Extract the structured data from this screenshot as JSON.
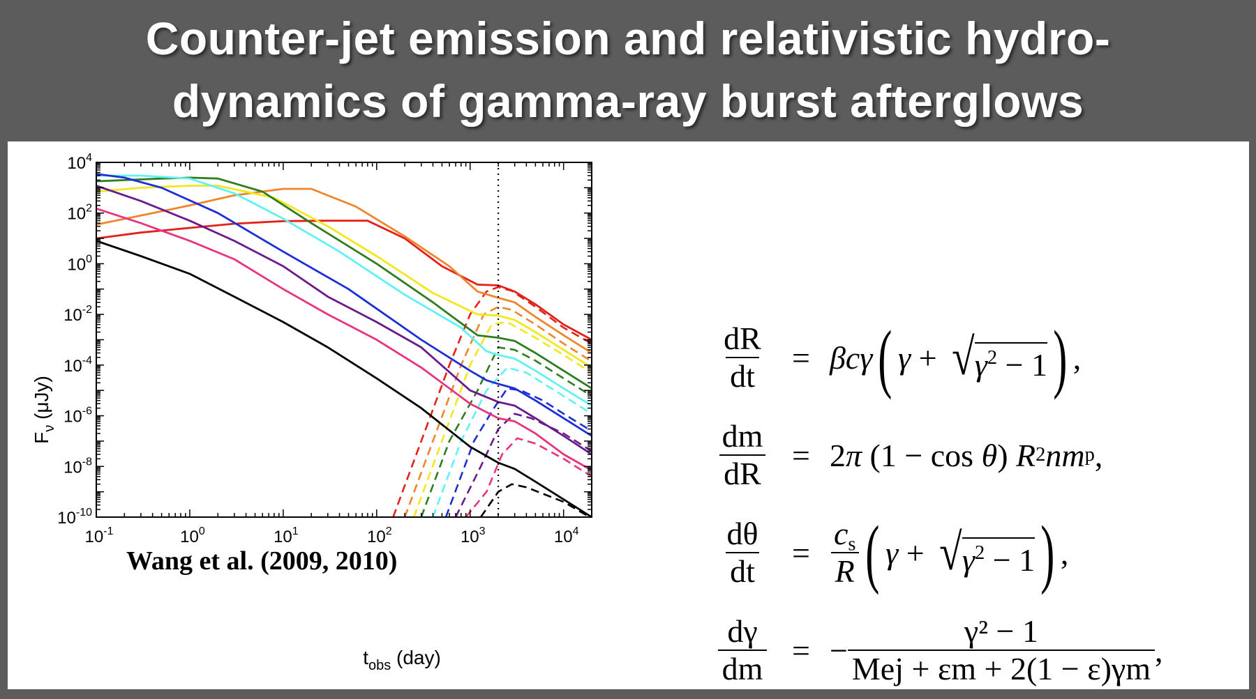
{
  "title": {
    "line1": "Counter-jet emission and relativistic hydro-",
    "line2": "dynamics of gamma-ray burst afterglows"
  },
  "chart_data": {
    "type": "line",
    "xscale": "log",
    "yscale": "log",
    "xlim": [
      0.1,
      20000
    ],
    "ylim": [
      1e-10,
      10000
    ],
    "xlabel": "t_obs (day)",
    "ylabel": "F_ν (μJy)",
    "x_ticks": [
      "10^-1",
      "10^0",
      "10^1",
      "10^2",
      "10^3",
      "10^4"
    ],
    "y_ticks": [
      "10^-10",
      "10^-8",
      "10^-6",
      "10^-4",
      "10^-2",
      "10^0",
      "10^2",
      "10^4"
    ],
    "vline": {
      "x": 2000,
      "style": "dotted"
    },
    "annotation": "Wang et al. (2009, 2010)",
    "series": [
      {
        "color": "#e32119",
        "solid": [
          [
            0.1,
            10
          ],
          [
            0.3,
            17
          ],
          [
            1,
            26
          ],
          [
            3,
            38
          ],
          [
            10,
            48
          ],
          [
            30,
            50
          ],
          [
            80,
            50
          ],
          [
            200,
            10
          ],
          [
            500,
            0.8
          ],
          [
            1200,
            0.15
          ],
          [
            2000,
            0.14
          ],
          [
            3000,
            0.08
          ],
          [
            5000,
            0.025
          ],
          [
            10000,
            0.004
          ],
          [
            20000,
            0.001
          ]
        ],
        "dashed": [
          [
            150,
            1e-10
          ],
          [
            300,
            1e-07
          ],
          [
            600,
            0.0001
          ],
          [
            1000,
            0.01
          ],
          [
            1500,
            0.08
          ],
          [
            2000,
            0.12
          ],
          [
            2800,
            0.085
          ],
          [
            5000,
            0.02
          ],
          [
            10000,
            0.003
          ],
          [
            20000,
            0.0007
          ]
        ]
      },
      {
        "color": "#f0852d",
        "solid": [
          [
            0.1,
            35
          ],
          [
            0.3,
            80
          ],
          [
            1,
            200
          ],
          [
            3,
            500
          ],
          [
            10,
            900
          ],
          [
            20,
            900
          ],
          [
            60,
            180
          ],
          [
            200,
            12
          ],
          [
            600,
            0.8
          ],
          [
            1200,
            0.08
          ],
          [
            2000,
            0.045
          ],
          [
            3000,
            0.03
          ],
          [
            5000,
            0.008
          ],
          [
            10000,
            0.0015
          ],
          [
            20000,
            0.0003
          ]
        ],
        "dashed": [
          [
            200,
            1e-10
          ],
          [
            400,
            1e-07
          ],
          [
            800,
            0.0001
          ],
          [
            1400,
            0.01
          ],
          [
            2000,
            0.02
          ],
          [
            2800,
            0.015
          ],
          [
            5000,
            0.004
          ],
          [
            10000,
            0.0007
          ],
          [
            20000,
            0.00014
          ]
        ]
      },
      {
        "color": "#f2e61c",
        "solid": [
          [
            0.1,
            700
          ],
          [
            0.3,
            1000
          ],
          [
            1,
            1200
          ],
          [
            2,
            1200
          ],
          [
            8,
            400
          ],
          [
            30,
            30
          ],
          [
            100,
            2
          ],
          [
            400,
            0.07
          ],
          [
            1200,
            0.01
          ],
          [
            2000,
            0.009
          ],
          [
            3000,
            0.006
          ],
          [
            5000,
            0.002
          ],
          [
            10000,
            0.0004
          ],
          [
            20000,
            8e-05
          ]
        ],
        "dashed": [
          [
            250,
            1e-10
          ],
          [
            500,
            1e-07
          ],
          [
            1000,
            0.0001
          ],
          [
            1700,
            0.004
          ],
          [
            2500,
            0.005
          ],
          [
            5000,
            0.0012
          ],
          [
            10000,
            0.00025
          ],
          [
            20000,
            5e-05
          ]
        ]
      },
      {
        "color": "#2f7d1f",
        "solid": [
          [
            0.1,
            1800
          ],
          [
            0.5,
            2300
          ],
          [
            1,
            2500
          ],
          [
            2,
            2300
          ],
          [
            6,
            700
          ],
          [
            20,
            40
          ],
          [
            100,
            1
          ],
          [
            400,
            0.03
          ],
          [
            1200,
            0.0015
          ],
          [
            2000,
            0.0012
          ],
          [
            3000,
            0.0009
          ],
          [
            5000,
            0.0003
          ],
          [
            10000,
            6e-05
          ],
          [
            20000,
            1.2e-05
          ]
        ],
        "dashed": [
          [
            300,
            1e-10
          ],
          [
            600,
            1e-07
          ],
          [
            1200,
            1e-05
          ],
          [
            2000,
            0.0005
          ],
          [
            3000,
            0.0004
          ],
          [
            5000,
            0.00015
          ],
          [
            10000,
            3e-05
          ],
          [
            20000,
            6e-06
          ]
        ]
      },
      {
        "color": "#5ff1f3",
        "solid": [
          [
            0.1,
            3000
          ],
          [
            0.3,
            3000
          ],
          [
            1,
            2300
          ],
          [
            3,
            600
          ],
          [
            10,
            60
          ],
          [
            40,
            3
          ],
          [
            200,
            0.06
          ],
          [
            800,
            0.003
          ],
          [
            1500,
            0.00035
          ],
          [
            2000,
            0.00025
          ],
          [
            3000,
            0.00018
          ],
          [
            5000,
            6e-05
          ],
          [
            10000,
            1.2e-05
          ],
          [
            20000,
            2.5e-06
          ]
        ],
        "dashed": [
          [
            400,
            1e-10
          ],
          [
            800,
            1e-07
          ],
          [
            1500,
            1e-05
          ],
          [
            2500,
            8e-05
          ],
          [
            4000,
            5e-05
          ],
          [
            10000,
            6e-06
          ],
          [
            20000,
            1.2e-06
          ]
        ]
      },
      {
        "color": "#1c2ed6",
        "solid": [
          [
            0.1,
            3500
          ],
          [
            0.2,
            2500
          ],
          [
            0.5,
            1000
          ],
          [
            2,
            100
          ],
          [
            10,
            3
          ],
          [
            50,
            0.1
          ],
          [
            300,
            0.001
          ],
          [
            1000,
            6e-05
          ],
          [
            1500,
            2.5e-05
          ],
          [
            2000,
            1.8e-05
          ],
          [
            3000,
            1.2e-05
          ],
          [
            5000,
            4e-06
          ],
          [
            10000,
            8e-07
          ],
          [
            20000,
            1.6e-07
          ]
        ],
        "dashed": [
          [
            550,
            1e-10
          ],
          [
            1100,
            1e-07
          ],
          [
            1800,
            2e-06
          ],
          [
            2500,
            1.2e-05
          ],
          [
            3500,
            1e-05
          ],
          [
            6000,
            4e-06
          ],
          [
            10000,
            1.2e-06
          ],
          [
            20000,
            2.5e-07
          ]
        ]
      },
      {
        "color": "#6a1a8c",
        "solid": [
          [
            0.1,
            1200
          ],
          [
            0.3,
            300
          ],
          [
            1,
            50
          ],
          [
            3,
            8
          ],
          [
            10,
            0.8
          ],
          [
            30,
            0.05
          ],
          [
            100,
            0.005
          ],
          [
            300,
            0.0005
          ],
          [
            1000,
            1e-05
          ],
          [
            2000,
            3.5e-06
          ],
          [
            3000,
            2.5e-06
          ],
          [
            5000,
            8e-07
          ],
          [
            10000,
            1.6e-07
          ],
          [
            20000,
            3e-08
          ]
        ],
        "dashed": [
          [
            700,
            1e-10
          ],
          [
            1300,
            1e-08
          ],
          [
            2000,
            3e-07
          ],
          [
            3000,
            1.2e-06
          ],
          [
            4500,
            8e-07
          ],
          [
            10000,
            2e-07
          ],
          [
            20000,
            4e-08
          ]
        ]
      },
      {
        "color": "#e8337f",
        "solid": [
          [
            0.1,
            150
          ],
          [
            0.3,
            40
          ],
          [
            1,
            8
          ],
          [
            3,
            1.5
          ],
          [
            10,
            0.1
          ],
          [
            30,
            0.01
          ],
          [
            100,
            0.001
          ],
          [
            300,
            8e-05
          ],
          [
            1000,
            3e-06
          ],
          [
            2000,
            8e-07
          ],
          [
            3000,
            6e-07
          ],
          [
            5000,
            2e-07
          ],
          [
            10000,
            3e-08
          ],
          [
            20000,
            7e-09
          ]
        ],
        "dashed": [
          [
            900,
            1e-10
          ],
          [
            1500,
            1e-09
          ],
          [
            2200,
            3e-08
          ],
          [
            3200,
            1.3e-07
          ],
          [
            5000,
            8e-08
          ],
          [
            10000,
            2e-08
          ],
          [
            20000,
            4e-09
          ]
        ]
      },
      {
        "color": "#000000",
        "solid": [
          [
            0.1,
            8
          ],
          [
            0.3,
            2
          ],
          [
            1,
            0.4
          ],
          [
            3,
            0.05
          ],
          [
            10,
            0.005
          ],
          [
            30,
            0.0005
          ],
          [
            100,
            3e-05
          ],
          [
            300,
            2e-06
          ],
          [
            1000,
            6e-08
          ],
          [
            2000,
            1.4e-08
          ],
          [
            3000,
            8e-09
          ],
          [
            5000,
            2.5e-09
          ],
          [
            10000,
            5e-10
          ],
          [
            20000,
            1e-10
          ]
        ],
        "dashed": [
          [
            1300,
            1e-10
          ],
          [
            2000,
            1e-09
          ],
          [
            2800,
            2e-09
          ],
          [
            4000,
            1.5e-09
          ],
          [
            10000,
            4e-10
          ],
          [
            20000,
            9e-11
          ]
        ]
      }
    ]
  },
  "equations": {
    "eq1_lhs_num": "dR",
    "eq1_lhs_den": "dt",
    "eq2_lhs_num": "dm",
    "eq2_lhs_den": "dR",
    "eq3_lhs_num": "dθ",
    "eq3_lhs_den": "dt",
    "eq4_lhs_num": "dγ",
    "eq4_lhs_den": "dm",
    "eq3_rhs_num": "c",
    "eq3_rhs_den": "R",
    "eq4_rhs_num": "γ² − 1",
    "eq4_rhs_den": "Mej + εm + 2(1 − ε)γm"
  }
}
